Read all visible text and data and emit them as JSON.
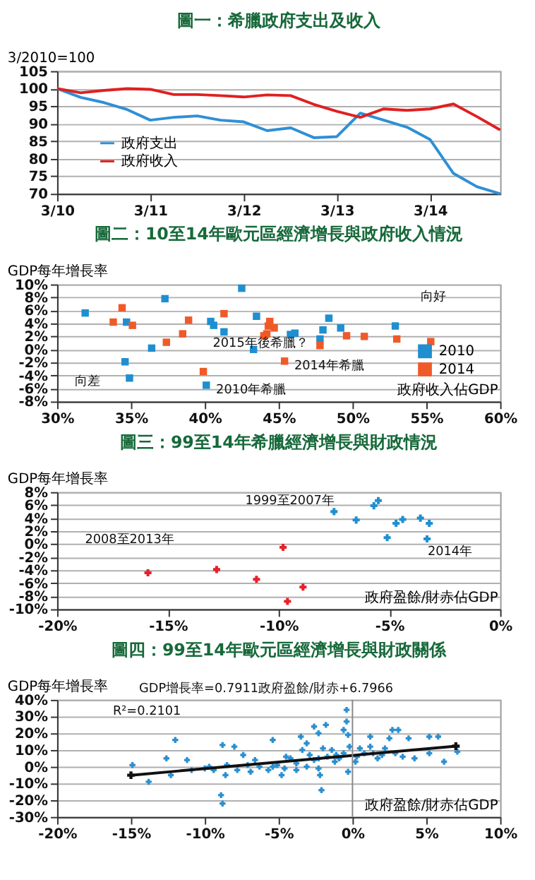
{
  "chart_data": [
    {
      "type": "line",
      "title": "圖一：希臘政府支出及收入",
      "ylabel": "3/2010=100",
      "x": [
        "2010-03",
        "2010-06",
        "2010-09",
        "2010-12",
        "2011-03",
        "2011-06",
        "2011-09",
        "2011-12",
        "2012-03",
        "2012-06",
        "2012-09",
        "2012-12",
        "2013-03",
        "2013-06",
        "2013-09",
        "2013-12",
        "2014-03",
        "2014-06",
        "2014-09",
        "2014-12"
      ],
      "series": [
        {
          "name": "政府支出",
          "color": "#2f8fd5",
          "values": [
            100,
            97.5,
            96,
            94,
            91,
            91.8,
            92.2,
            91,
            90.5,
            88,
            88.8,
            86,
            86.3,
            93,
            91,
            89,
            85.5,
            75.8,
            72,
            70
          ]
        },
        {
          "name": "政府收入",
          "color": "#e02020",
          "values": [
            100,
            98.8,
            99.5,
            100,
            99.8,
            98.3,
            98.3,
            98,
            97.6,
            98.2,
            98,
            95.5,
            93.5,
            91.8,
            94.2,
            93.8,
            94.2,
            95.6,
            92,
            88.2
          ]
        }
      ],
      "xlim": [
        "2010-03",
        "2014-12"
      ],
      "xticks": [
        {
          "value": "2010-03",
          "label": "3/10"
        },
        {
          "value": "2011-03",
          "label": "3/11"
        },
        {
          "value": "2012-03",
          "label": "3/12"
        },
        {
          "value": "2013-03",
          "label": "3/13"
        },
        {
          "value": "2014-03",
          "label": "3/14"
        }
      ],
      "ylim": [
        70,
        105
      ],
      "yticks": [
        70,
        75,
        80,
        85,
        90,
        95,
        100,
        105
      ],
      "grid": "y",
      "legend": "left",
      "marker": "none",
      "line_style": "solid"
    },
    {
      "type": "scatter",
      "title": "圖二：10至14年歐元區經濟增長與政府收入情況",
      "xlabel": "政府收入佔GDP",
      "ylabel": "GDP每年增長率",
      "series": [
        {
          "name": "2010",
          "color": "#1f8fd0",
          "x": [
            31.9,
            34.7,
            37.3,
            36.4,
            34.6,
            34.9,
            40.4,
            40.6,
            41.3,
            42.5,
            43.5,
            43.3,
            45.8,
            46.1,
            47.8,
            48.0,
            48.4,
            49.2,
            52.9,
            40.1
          ],
          "values": [
            5.6,
            4.2,
            7.8,
            0.2,
            -1.9,
            -4.4,
            4.3,
            3.7,
            2.7,
            9.4,
            5.1,
            0.0,
            2.3,
            2.5,
            1.6,
            3.0,
            4.8,
            3.3,
            3.6,
            -5.5
          ]
        },
        {
          "name": "2014",
          "color": "#f05a28",
          "x": [
            33.8,
            34.4,
            35.1,
            37.4,
            38.5,
            38.9,
            39.9,
            41.3,
            44.3,
            44.4,
            44.2,
            44.7,
            44.0,
            45.4,
            47.8,
            49.6,
            50.8,
            53.0,
            55.3
          ],
          "values": [
            4.2,
            6.4,
            3.7,
            1.1,
            2.4,
            4.5,
            -3.4,
            5.5,
            3.6,
            4.3,
            2.4,
            3.3,
            2.1,
            -1.8,
            0.6,
            2.1,
            2.0,
            1.6,
            1.2
          ]
        }
      ],
      "xlim": [
        30,
        60
      ],
      "xticks": [
        {
          "value": 30,
          "label": "30%"
        },
        {
          "value": 35,
          "label": "35%"
        },
        {
          "value": 40,
          "label": "40%"
        },
        {
          "value": 45,
          "label": "45%"
        },
        {
          "value": 50,
          "label": "50%"
        },
        {
          "value": 55,
          "label": "55%"
        },
        {
          "value": 60,
          "label": "60%"
        }
      ],
      "ylim": [
        -8,
        10
      ],
      "yticks": [
        {
          "value": -8,
          "label": "-8%"
        },
        {
          "value": -6,
          "label": "-6%"
        },
        {
          "value": -4,
          "label": "-4%"
        },
        {
          "value": -2,
          "label": "-2%"
        },
        {
          "value": 0,
          "label": "0%"
        },
        {
          "value": 2,
          "label": "2%"
        },
        {
          "value": 4,
          "label": "4%"
        },
        {
          "value": 6,
          "label": "6%"
        },
        {
          "value": 8,
          "label": "8%"
        },
        {
          "value": 10,
          "label": "10%"
        }
      ],
      "annotations": [
        "向好",
        "向差",
        "2015年後希臘？",
        {
          "text": "2014年希臘",
          "x": 45.4,
          "y": -1.8
        },
        {
          "text": "2010年希臘",
          "x": 40.1,
          "y": -5.5
        }
      ],
      "grid": "y",
      "legend": "right",
      "marker": "square"
    },
    {
      "type": "scatter",
      "title": "圖三：99至14年希臘經濟增長與財政情況",
      "xlabel": "政府盈餘/財赤佔GDP",
      "ylabel": "GDP每年增長率",
      "series": [
        {
          "color": "#1f8fd0",
          "x": [
            -7.5,
            -5.5,
            -5.7,
            -6.5,
            -4.4,
            -4.7,
            -3.6,
            -3.2,
            -5.1,
            -3.3
          ],
          "values": [
            5.0,
            6.7,
            5.9,
            3.7,
            3.8,
            3.2,
            4.0,
            3.2,
            1.0,
            0.8
          ]
        },
        {
          "color": "#e8202a",
          "x": [
            -15.9,
            -12.8,
            -11.0,
            -8.9,
            -9.6,
            -9.8
          ],
          "values": [
            -4.4,
            -3.9,
            -5.4,
            -6.6,
            -8.8,
            -0.5
          ]
        }
      ],
      "xlim": [
        -20,
        0
      ],
      "xticks": [
        {
          "value": -20,
          "label": "-20%"
        },
        {
          "value": -15,
          "label": "-15%"
        },
        {
          "value": -10,
          "label": "-10%"
        },
        {
          "value": -5,
          "label": "-5%"
        },
        {
          "value": 0,
          "label": "0%"
        }
      ],
      "ylim": [
        -10,
        8
      ],
      "yticks": [
        {
          "value": -10,
          "label": "-10%"
        },
        {
          "value": -8,
          "label": "-8%"
        },
        {
          "value": -6,
          "label": "-6%"
        },
        {
          "value": -4,
          "label": "-4%"
        },
        {
          "value": -2,
          "label": "-2%"
        },
        {
          "value": 0,
          "label": "0%"
        },
        {
          "value": 2,
          "label": "2%"
        },
        {
          "value": 4,
          "label": "4%"
        },
        {
          "value": 6,
          "label": "6%"
        },
        {
          "value": 8,
          "label": "8%"
        }
      ],
      "annotations": [
        "1999至2007年",
        "2008至2013年",
        "2014年"
      ],
      "grid": "y",
      "marker": "cross"
    },
    {
      "type": "scatter",
      "title": "圖四：99至14年歐元區經濟增長與財政關係",
      "xlabel": "政府盈餘/財赤佔GDP",
      "ylabel": "GDP每年增長率",
      "series": [
        {
          "color": "#2a8fd0",
          "x": [
            -14.9,
            -13.8,
            -12.0,
            -12.6,
            -12.3,
            -11.2,
            -10.9,
            -8.8,
            -8.0,
            -8.9,
            -8.8,
            -8.6,
            -9.4,
            -10.0,
            -7.4,
            -7.8,
            -6.9,
            -6.6,
            -5.4,
            -5.7,
            -4.8,
            -5.1,
            -4.5,
            -4.2,
            -3.5,
            -3.1,
            -2.6,
            -1.8,
            -2.3,
            -2.2,
            -2.1,
            -3.8,
            -3.4,
            -2.9,
            -2.6,
            -2.0,
            -1.7,
            -1.2,
            -0.6,
            -0.4,
            -0.4,
            -0.3,
            -0.3,
            -0.6,
            -0.2,
            0.3,
            0.5,
            0.8,
            1.2,
            1.2,
            1.7,
            2.2,
            2.5,
            2.7,
            3.1,
            2.9,
            3.4,
            3.8,
            4.2,
            5.2,
            5.2,
            5.8,
            6.2,
            7.1,
            -1.1,
            -5.4,
            -6.3,
            -7.1,
            -4.6,
            -3.1,
            -2.3,
            -1.4,
            -0.9,
            0.2,
            1.4,
            2.0,
            -2.3,
            -3.8,
            -9.7,
            -8.5
          ],
          "values": [
            1,
            -9,
            16,
            5,
            -5,
            4,
            -2,
            13,
            12,
            -17,
            -22,
            -5,
            -2,
            -1,
            7,
            -2,
            -3,
            4,
            16,
            -2,
            -5,
            1,
            6,
            5,
            18,
            14,
            24,
            25,
            20,
            -5,
            -14,
            2,
            10,
            7,
            4,
            11,
            6,
            3,
            22,
            34,
            27,
            19,
            -3,
            8,
            12,
            6,
            11,
            8,
            18,
            12,
            5,
            11,
            17,
            22,
            22,
            8,
            6,
            17,
            5,
            18,
            8,
            18,
            3,
            9,
            7,
            0,
            0,
            1,
            -1,
            0,
            5,
            10,
            5,
            3,
            8,
            7,
            -1,
            -2,
            0,
            1
          ]
        },
        {
          "type": "line",
          "color": "#111111",
          "x": [
            -15,
            7
          ],
          "values": [
            -5.1,
            12.3
          ]
        }
      ],
      "xlim": [
        -20,
        10
      ],
      "xticks": [
        {
          "value": -20,
          "label": "-20%"
        },
        {
          "value": -15,
          "label": "-15%"
        },
        {
          "value": -10,
          "label": "-10%"
        },
        {
          "value": -5,
          "label": "-5%"
        },
        {
          "value": 0,
          "label": "0%"
        },
        {
          "value": 5,
          "label": "5%"
        },
        {
          "value": 10,
          "label": "10%"
        }
      ],
      "ylim": [
        -30,
        40
      ],
      "yticks": [
        {
          "value": -30,
          "label": "-30%"
        },
        {
          "value": -20,
          "label": "-20%"
        },
        {
          "value": -10,
          "label": "-10%"
        },
        {
          "value": 0,
          "label": "0%"
        },
        {
          "value": 10,
          "label": "10%"
        },
        {
          "value": 20,
          "label": "20%"
        },
        {
          "value": 30,
          "label": "30%"
        },
        {
          "value": 40,
          "label": "40%"
        }
      ],
      "annotations": [
        "GDP增長率=0.7911政府盈餘/財赤+6.7966",
        "R²=0.2101"
      ],
      "ref_lines": [
        {
          "axis": "x",
          "value": 0,
          "color": "#888888"
        }
      ],
      "grid": "y",
      "marker": "cross"
    }
  ]
}
